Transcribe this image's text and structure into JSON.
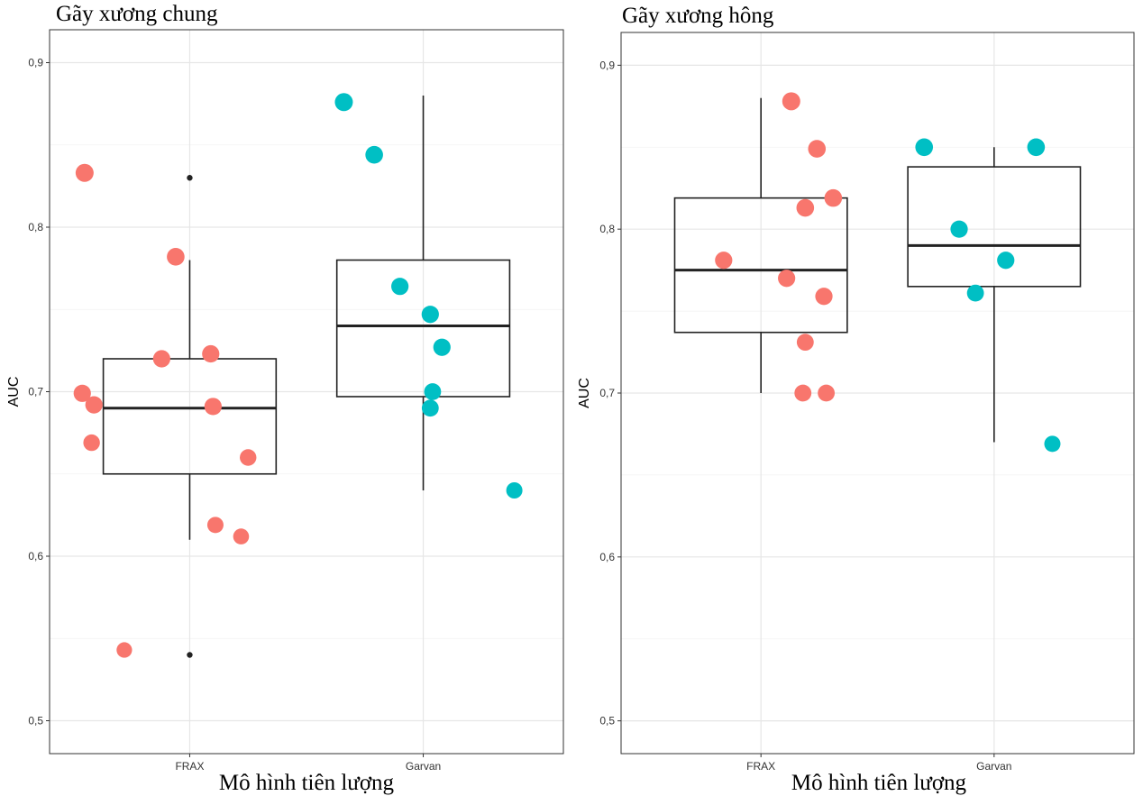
{
  "chart_data": [
    {
      "type": "boxplot",
      "title": "Gãy xương chung",
      "xlabel": "Mô hình tiên lượng",
      "ylabel": "AUC",
      "ylim": [
        0.48,
        0.92
      ],
      "yticks": [
        "0,5",
        "0,6",
        "0,7",
        "0,8",
        "0,9"
      ],
      "ytick_values": [
        0.5,
        0.6,
        0.7,
        0.8,
        0.9
      ],
      "categories": [
        "FRAX",
        "Garvan"
      ],
      "grid": true,
      "boxes": [
        {
          "category": "FRAX",
          "q1": 0.65,
          "median": 0.69,
          "q3": 0.72,
          "whisker_low": 0.61,
          "whisker_high": 0.78,
          "outliers": [
            0.83,
            0.54
          ]
        },
        {
          "category": "Garvan",
          "q1": 0.697,
          "median": 0.74,
          "q3": 0.78,
          "whisker_low": 0.64,
          "whisker_high": 0.88,
          "outliers": []
        }
      ],
      "series": [
        {
          "category": "FRAX",
          "color": "#F8766D",
          "points": [
            {
              "x": 0.55,
              "y": 0.833,
              "size": 1.0
            },
            {
              "x": 0.94,
              "y": 0.782,
              "size": 0.95
            },
            {
              "x": 0.88,
              "y": 0.72,
              "size": 0.9
            },
            {
              "x": 1.09,
              "y": 0.723,
              "size": 0.9
            },
            {
              "x": 0.54,
              "y": 0.699,
              "size": 0.9
            },
            {
              "x": 0.59,
              "y": 0.692,
              "size": 0.9
            },
            {
              "x": 1.1,
              "y": 0.691,
              "size": 0.9
            },
            {
              "x": 0.58,
              "y": 0.669,
              "size": 0.8
            },
            {
              "x": 1.25,
              "y": 0.66,
              "size": 0.8
            },
            {
              "x": 1.11,
              "y": 0.619,
              "size": 0.75
            },
            {
              "x": 1.22,
              "y": 0.612,
              "size": 0.7
            },
            {
              "x": 0.72,
              "y": 0.543,
              "size": 0.65
            }
          ]
        },
        {
          "category": "Garvan",
          "color": "#00BFC4",
          "points": [
            {
              "x": 1.66,
              "y": 0.876,
              "size": 1.0
            },
            {
              "x": 1.79,
              "y": 0.844,
              "size": 0.95
            },
            {
              "x": 1.9,
              "y": 0.764,
              "size": 0.9
            },
            {
              "x": 2.03,
              "y": 0.747,
              "size": 0.9
            },
            {
              "x": 2.08,
              "y": 0.727,
              "size": 0.9
            },
            {
              "x": 2.04,
              "y": 0.7,
              "size": 0.85
            },
            {
              "x": 2.03,
              "y": 0.69,
              "size": 0.85
            },
            {
              "x": 2.39,
              "y": 0.64,
              "size": 0.75
            }
          ]
        }
      ]
    },
    {
      "type": "boxplot",
      "title": "Gãy xương hông",
      "xlabel": "Mô hình tiên lượng",
      "ylabel": "AUC",
      "ylim": [
        0.48,
        0.92
      ],
      "yticks": [
        "0,5",
        "0,6",
        "0,7",
        "0,8",
        "0,9"
      ],
      "ytick_values": [
        0.5,
        0.6,
        0.7,
        0.8,
        0.9
      ],
      "categories": [
        "FRAX",
        "Garvan"
      ],
      "grid": true,
      "boxes": [
        {
          "category": "FRAX",
          "q1": 0.737,
          "median": 0.775,
          "q3": 0.819,
          "whisker_low": 0.7,
          "whisker_high": 0.88,
          "outliers": []
        },
        {
          "category": "Garvan",
          "q1": 0.765,
          "median": 0.79,
          "q3": 0.838,
          "whisker_low": 0.67,
          "whisker_high": 0.85,
          "outliers": []
        }
      ],
      "series": [
        {
          "category": "FRAX",
          "color": "#F8766D",
          "points": [
            {
              "x": 1.13,
              "y": 0.878,
              "size": 1.0
            },
            {
              "x": 1.24,
              "y": 0.849,
              "size": 0.95
            },
            {
              "x": 1.31,
              "y": 0.819,
              "size": 0.95
            },
            {
              "x": 1.19,
              "y": 0.813,
              "size": 0.95
            },
            {
              "x": 0.84,
              "y": 0.781,
              "size": 0.9
            },
            {
              "x": 1.11,
              "y": 0.77,
              "size": 0.9
            },
            {
              "x": 1.27,
              "y": 0.759,
              "size": 0.9
            },
            {
              "x": 1.19,
              "y": 0.731,
              "size": 0.85
            },
            {
              "x": 1.18,
              "y": 0.7,
              "size": 0.85
            },
            {
              "x": 1.28,
              "y": 0.7,
              "size": 0.85
            }
          ]
        },
        {
          "category": "Garvan",
          "color": "#00BFC4",
          "points": [
            {
              "x": 1.7,
              "y": 0.85,
              "size": 0.95
            },
            {
              "x": 2.18,
              "y": 0.85,
              "size": 0.95
            },
            {
              "x": 1.85,
              "y": 0.8,
              "size": 0.9
            },
            {
              "x": 2.05,
              "y": 0.781,
              "size": 0.9
            },
            {
              "x": 1.92,
              "y": 0.761,
              "size": 0.85
            },
            {
              "x": 2.25,
              "y": 0.669,
              "size": 0.75
            }
          ]
        }
      ]
    }
  ]
}
